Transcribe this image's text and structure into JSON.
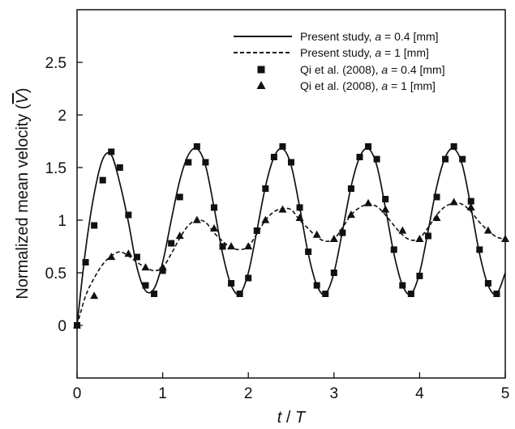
{
  "chart_data": {
    "type": "line",
    "xlabel": {
      "var": "t",
      "sep": " / ",
      "unit": "T"
    },
    "ylabel": {
      "text": "Normalized mean velocity ",
      "open": "(",
      "symbol": "V",
      "close": ")"
    },
    "xlim": [
      0,
      5
    ],
    "ylim": [
      -0.5,
      3
    ],
    "x_ticks": [
      0,
      1,
      2,
      3,
      4,
      5
    ],
    "x_tick_labels": [
      "0",
      "1",
      "2",
      "3",
      "4",
      "5"
    ],
    "y_ticks": [
      0,
      0.5,
      1,
      1.5,
      2,
      2.5
    ],
    "y_tick_labels": [
      "0",
      "0.5",
      "1",
      "1.5",
      "2",
      "2.5"
    ],
    "grid": false,
    "legend_position": "top-right",
    "series": [
      {
        "name_parts": [
          "Present study, ",
          "a",
          " = 0.4 [mm]"
        ],
        "style": "solid-line",
        "x": [
          0,
          0.1,
          0.2,
          0.3,
          0.4,
          0.5,
          0.6,
          0.7,
          0.8,
          0.9,
          1.0,
          1.1,
          1.2,
          1.3,
          1.4,
          1.5,
          1.6,
          1.7,
          1.8,
          1.9,
          2.0,
          2.1,
          2.2,
          2.3,
          2.4,
          2.5,
          2.6,
          2.7,
          2.8,
          2.9,
          3.0,
          3.1,
          3.2,
          3.3,
          3.4,
          3.5,
          3.6,
          3.7,
          3.8,
          3.9,
          4.0,
          4.1,
          4.2,
          4.3,
          4.4,
          4.5,
          4.6,
          4.7,
          4.8,
          4.9,
          5.0
        ],
        "y": [
          0,
          0.72,
          1.25,
          1.58,
          1.62,
          1.35,
          0.98,
          0.55,
          0.33,
          0.35,
          0.6,
          1.0,
          1.38,
          1.62,
          1.68,
          1.52,
          1.12,
          0.68,
          0.38,
          0.3,
          0.5,
          0.9,
          1.32,
          1.6,
          1.68,
          1.52,
          1.12,
          0.68,
          0.38,
          0.3,
          0.5,
          0.9,
          1.32,
          1.6,
          1.68,
          1.52,
          1.12,
          0.68,
          0.38,
          0.3,
          0.5,
          0.9,
          1.32,
          1.6,
          1.68,
          1.52,
          1.12,
          0.68,
          0.38,
          0.3,
          0.5
        ]
      },
      {
        "name_parts": [
          "Present study, ",
          "a",
          " = 1 [mm]"
        ],
        "style": "dashed-line",
        "x": [
          0,
          0.1,
          0.2,
          0.3,
          0.4,
          0.5,
          0.6,
          0.7,
          0.8,
          0.9,
          1.0,
          1.1,
          1.2,
          1.3,
          1.4,
          1.5,
          1.6,
          1.7,
          1.8,
          1.9,
          2.0,
          2.1,
          2.2,
          2.3,
          2.4,
          2.5,
          2.6,
          2.7,
          2.8,
          2.9,
          3.0,
          3.1,
          3.2,
          3.3,
          3.4,
          3.5,
          3.6,
          3.7,
          3.8,
          3.9,
          4.0,
          4.1,
          4.2,
          4.3,
          4.4,
          4.5,
          4.6,
          4.7,
          4.8,
          4.9,
          5.0
        ],
        "y": [
          0,
          0.28,
          0.45,
          0.58,
          0.66,
          0.7,
          0.66,
          0.6,
          0.55,
          0.52,
          0.55,
          0.68,
          0.83,
          0.95,
          1.0,
          0.98,
          0.88,
          0.8,
          0.74,
          0.72,
          0.75,
          0.87,
          1.0,
          1.08,
          1.11,
          1.1,
          1.0,
          0.92,
          0.84,
          0.8,
          0.82,
          0.93,
          1.05,
          1.12,
          1.15,
          1.13,
          1.05,
          0.95,
          0.86,
          0.81,
          0.83,
          0.93,
          1.05,
          1.13,
          1.16,
          1.15,
          1.08,
          0.98,
          0.9,
          0.84,
          0.82
        ]
      },
      {
        "name_parts": [
          "Qi et al. (2008), ",
          "a",
          " = 0.4 [mm]"
        ],
        "style": "square-markers",
        "x": [
          0,
          0.1,
          0.2,
          0.3,
          0.4,
          0.5,
          0.6,
          0.7,
          0.8,
          0.9,
          1.0,
          1.1,
          1.2,
          1.3,
          1.4,
          1.5,
          1.6,
          1.7,
          1.8,
          1.9,
          2.0,
          2.1,
          2.2,
          2.3,
          2.4,
          2.5,
          2.6,
          2.7,
          2.8,
          2.9,
          3.0,
          3.1,
          3.2,
          3.3,
          3.4,
          3.5,
          3.6,
          3.7,
          3.8,
          3.9,
          4.0,
          4.1,
          4.2,
          4.3,
          4.4,
          4.5,
          4.6,
          4.7,
          4.8,
          4.9
        ],
        "y": [
          0,
          0.6,
          0.95,
          1.38,
          1.65,
          1.5,
          1.05,
          0.65,
          0.38,
          0.3,
          0.52,
          0.78,
          1.22,
          1.55,
          1.7,
          1.55,
          1.12,
          0.75,
          0.4,
          0.3,
          0.45,
          0.9,
          1.3,
          1.6,
          1.7,
          1.55,
          1.12,
          0.7,
          0.38,
          0.3,
          0.5,
          0.88,
          1.3,
          1.6,
          1.7,
          1.58,
          1.2,
          0.72,
          0.38,
          0.3,
          0.47,
          0.85,
          1.22,
          1.58,
          1.7,
          1.58,
          1.18,
          0.72,
          0.4,
          0.3
        ]
      },
      {
        "name_parts": [
          "Qi et al. (2008), ",
          "a",
          " = 1 [mm]"
        ],
        "style": "triangle-markers",
        "x": [
          0,
          0.2,
          0.4,
          0.6,
          0.8,
          1.0,
          1.2,
          1.4,
          1.6,
          1.8,
          2.0,
          2.2,
          2.4,
          2.6,
          2.8,
          3.0,
          3.2,
          3.4,
          3.6,
          3.8,
          4.0,
          4.2,
          4.4,
          4.6,
          4.8,
          5.0
        ],
        "y": [
          0,
          0.28,
          0.65,
          0.68,
          0.55,
          0.55,
          0.85,
          1.0,
          0.92,
          0.75,
          0.75,
          1.0,
          1.1,
          1.02,
          0.86,
          0.82,
          1.05,
          1.16,
          1.1,
          0.9,
          0.82,
          1.02,
          1.17,
          1.12,
          0.9,
          0.82
        ]
      }
    ]
  }
}
